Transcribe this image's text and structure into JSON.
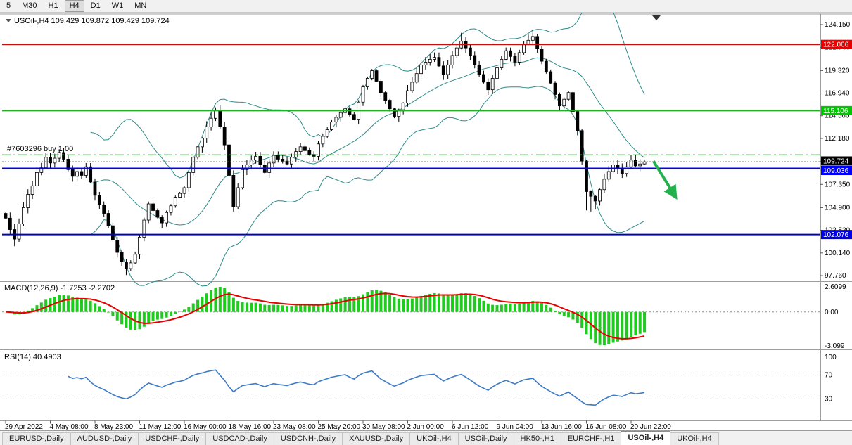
{
  "toolbar": {
    "timeframes": [
      "5",
      "M30",
      "H1",
      "H4",
      "D1",
      "W1",
      "MN"
    ],
    "active_timeframe": "H4"
  },
  "chart_header": {
    "symbol": "USOil-,H4",
    "ohlc": "109.429 109.872 109.429 109.724"
  },
  "trade_marker": {
    "label": "#7603296 buy 1.00",
    "price": 110.47,
    "color": "#3CB043"
  },
  "price_axis": {
    "ticks": [
      {
        "label": "124.150",
        "value": 124.15
      },
      {
        "label": "121.740",
        "value": 121.74
      },
      {
        "label": "119.320",
        "value": 119.32
      },
      {
        "label": "116.940",
        "value": 116.94
      },
      {
        "label": "114.560",
        "value": 114.56
      },
      {
        "label": "112.180",
        "value": 112.18
      },
      {
        "label": "109.770",
        "value": 109.77
      },
      {
        "label": "107.350",
        "value": 107.35
      },
      {
        "label": "104.900",
        "value": 104.9
      },
      {
        "label": "102.520",
        "value": 102.52
      },
      {
        "label": "100.140",
        "value": 100.14
      },
      {
        "label": "97.760",
        "value": 97.76
      }
    ]
  },
  "time_axis": {
    "labels": [
      {
        "text": "29 Apr 2022",
        "bar": 0
      },
      {
        "text": "4 May 08:00",
        "bar": 10
      },
      {
        "text": "8 May 23:00",
        "bar": 20
      },
      {
        "text": "11 May 12:00",
        "bar": 30
      },
      {
        "text": "16 May 00:00",
        "bar": 40
      },
      {
        "text": "18 May 16:00",
        "bar": 50
      },
      {
        "text": "23 May 08:00",
        "bar": 60
      },
      {
        "text": "25 May 20:00",
        "bar": 70
      },
      {
        "text": "30 May 08:00",
        "bar": 80
      },
      {
        "text": "2 Jun 00:00",
        "bar": 90
      },
      {
        "text": "6 Jun 12:00",
        "bar": 100
      },
      {
        "text": "9 Jun 04:00",
        "bar": 110
      },
      {
        "text": "13 Jun 16:00",
        "bar": 120
      },
      {
        "text": "16 Jun 08:00",
        "bar": 130
      },
      {
        "text": "20 Jun 22:00",
        "bar": 140
      }
    ]
  },
  "chart_data": {
    "type": "candlestick",
    "symbol": "USOil-,H4",
    "open_first": 104.3,
    "closes": [
      103.8,
      102.6,
      101.6,
      103.2,
      104.9,
      106.3,
      107.2,
      108.6,
      109.1,
      110.2,
      109.6,
      110.1,
      110.7,
      110.0,
      108.9,
      108.2,
      108.7,
      108.3,
      109.2,
      107.6,
      106.2,
      105.2,
      104.3,
      103.0,
      101.5,
      100.2,
      99.2,
      98.5,
      99.1,
      100.0,
      101.8,
      103.6,
      105.3,
      104.6,
      103.9,
      103.3,
      104.4,
      105.1,
      106.0,
      106.4,
      107.0,
      108.6,
      110.2,
      111.3,
      112.2,
      113.4,
      114.3,
      115.1,
      113.4,
      111.5,
      108.3,
      105.0,
      107.0,
      108.9,
      109.4,
      109.9,
      110.3,
      109.4,
      108.6,
      109.6,
      110.4,
      110.0,
      109.8,
      109.5,
      110.2,
      110.8,
      111.3,
      110.9,
      110.5,
      110.3,
      111.6,
      112.4,
      113.1,
      113.9,
      114.4,
      114.9,
      115.3,
      114.7,
      114.2,
      116.0,
      117.6,
      118.5,
      119.3,
      118.2,
      117.0,
      116.2,
      115.3,
      114.5,
      115.2,
      115.9,
      117.2,
      118.1,
      119.0,
      119.9,
      120.2,
      120.5,
      120.7,
      119.8,
      118.9,
      119.9,
      120.9,
      121.7,
      122.4,
      121.7,
      120.9,
      119.9,
      118.9,
      118.1,
      117.3,
      118.5,
      119.6,
      120.5,
      121.4,
      120.8,
      120.2,
      121.2,
      122.1,
      122.5,
      122.9,
      121.6,
      120.3,
      119.2,
      118.0,
      116.8,
      115.6,
      116.3,
      117.0,
      115.0,
      113.0,
      109.8,
      106.6,
      106.1,
      105.6,
      106.8,
      107.9,
      108.7,
      109.4,
      109.0,
      108.5,
      109.2,
      109.9,
      109.3,
      109.5,
      109.724
    ],
    "high_overrides": {
      "12": 111.05,
      "47": 115.45,
      "102": 123.28,
      "117": 123.1,
      "118": 123.62,
      "143": 109.872
    },
    "low_overrides": {
      "2": 100.85,
      "27": 97.82,
      "51": 104.5,
      "130": 104.62,
      "131": 104.5,
      "132": 104.7,
      "143": 109.429
    },
    "candle_up_fill": "#ffffff",
    "candle_down_fill": "#000000",
    "candle_stroke": "#000000",
    "ylim": [
      97.17,
      125.26
    ],
    "hlines": [
      {
        "price": 122.066,
        "color": "#E60000",
        "width": 2,
        "style": "solid",
        "badge": "122.066",
        "badge_color": "#E60000"
      },
      {
        "price": 115.106,
        "color": "#00C800",
        "width": 2,
        "style": "solid",
        "badge": "115.106",
        "badge_color": "#00C800"
      },
      {
        "price": 109.036,
        "color": "#0000FF",
        "width": 2,
        "style": "solid",
        "badge": "109.036",
        "badge_color": "#0000FF"
      },
      {
        "price": 102.076,
        "color": "#0000C8",
        "width": 2,
        "style": "solid",
        "badge": "102.076",
        "badge_color": "#0000E0"
      },
      {
        "price": 109.724,
        "color": "#555555",
        "width": 1,
        "style": "dotted",
        "badge": "109.724",
        "badge_color": "#000000"
      },
      {
        "price": 110.47,
        "color": "#3CB043",
        "width": 1,
        "style": "dashdot"
      }
    ],
    "arrow": {
      "color": "#22B14C",
      "from": {
        "bar": 145,
        "price": 109.8
      },
      "to": {
        "bar": 150,
        "price": 106.0
      }
    },
    "indicators": {
      "bollinger": {
        "period": 20,
        "deviation": 2,
        "color": "#2E8B8B"
      },
      "macd": {
        "title": "MACD(12,26,9)",
        "value_text": "-1.7253 -2.2702",
        "fast": 12,
        "slow": 26,
        "signal": 9,
        "scale_top": "2.6099",
        "scale_zero": "0.00",
        "scale_bottom": "-3.099",
        "histogram_color": "#1FCB1F",
        "signal_color": "#E80000"
      },
      "rsi": {
        "title": "RSI(14)",
        "value_text": "40.4903",
        "period": 14,
        "levels": [
          70,
          30
        ],
        "scale_labels": [
          {
            "text": "100",
            "value": 100
          },
          {
            "text": "70",
            "value": 70
          },
          {
            "text": "30",
            "value": 30
          }
        ],
        "line_color": "#3E7BC4"
      }
    }
  },
  "tabs": {
    "items": [
      "EURUSD-,Daily",
      "AUDUSD-,Daily",
      "USDCHF-,Daily",
      "USDCAD-,Daily",
      "USDCNH-,Daily",
      "XAUUSD-,Daily",
      "UKOil-,H4",
      "USOil-,Daily",
      "HK50-,H1",
      "EURCHF-,H1",
      "USOil-,H4",
      "UKOil-,H4"
    ],
    "active_index": 10
  }
}
